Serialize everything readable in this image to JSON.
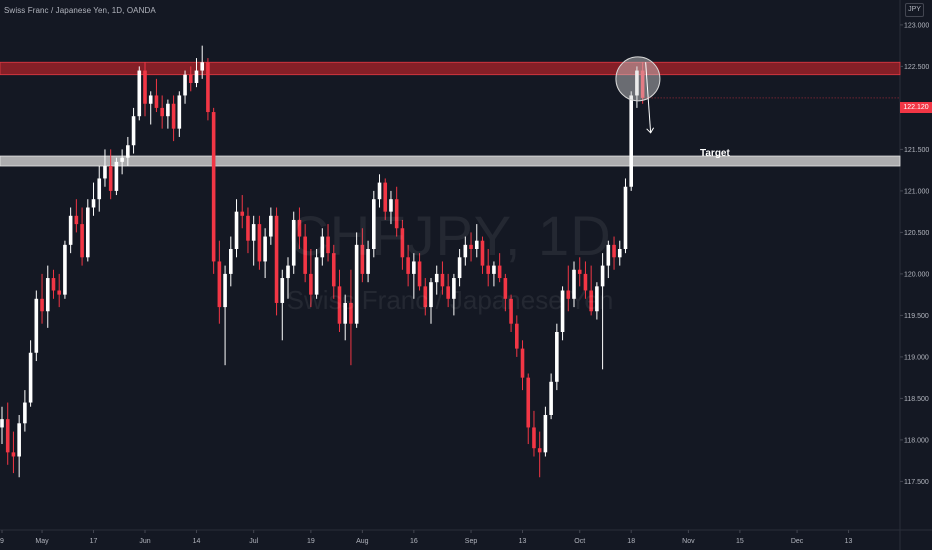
{
  "header": {
    "title": "Swiss Franc / Japanese Yen, 1D, OANDA",
    "currency": "JPY"
  },
  "watermark": {
    "symbol": "CHFJPY, 1D",
    "name": "Swiss Franc / Japanese Yen"
  },
  "annotations": {
    "target_label": "Target",
    "last_price_label": "122.120"
  },
  "colors": {
    "background": "#141823",
    "up_candle": "#ffffff",
    "down_candle": "#f23645",
    "resistance_zone": "#b2222a",
    "target_zone": "#c8c8c8",
    "axis_text": "#b2b5be"
  },
  "chart_data": {
    "type": "candlestick",
    "symbol": "CHFJPY",
    "title": "Swiss Franc / Japanese Yen, 1D, OANDA",
    "ylim": [
      117.2,
      123.3
    ],
    "y_ticks": [
      "117.500",
      "118.000",
      "118.500",
      "119.000",
      "119.500",
      "120.000",
      "120.500",
      "121.000",
      "121.500",
      "122.000",
      "122.500",
      "123.000"
    ],
    "x_ticks": [
      {
        "label": "9",
        "i": 0
      },
      {
        "label": "May",
        "i": 7
      },
      {
        "label": "17",
        "i": 16
      },
      {
        "label": "Jun",
        "i": 25
      },
      {
        "label": "14",
        "i": 34
      },
      {
        "label": "Jul",
        "i": 44
      },
      {
        "label": "19",
        "i": 54
      },
      {
        "label": "Aug",
        "i": 63
      },
      {
        "label": "16",
        "i": 72
      },
      {
        "label": "Sep",
        "i": 82
      },
      {
        "label": "13",
        "i": 91
      },
      {
        "label": "Oct",
        "i": 101
      },
      {
        "label": "18",
        "i": 110
      },
      {
        "label": "Nov",
        "i": 120
      },
      {
        "label": "15",
        "i": 129
      },
      {
        "label": "Dec",
        "i": 139
      },
      {
        "label": "13",
        "i": 148
      }
    ],
    "zones": [
      {
        "name": "resistance",
        "y_from": 122.4,
        "y_to": 122.55
      },
      {
        "name": "target",
        "y_from": 121.3,
        "y_to": 121.42
      }
    ],
    "last_price": 122.12,
    "candles": [
      [
        118.15,
        118.4,
        117.95,
        118.25
      ],
      [
        118.25,
        118.45,
        117.7,
        117.85
      ],
      [
        117.85,
        118.1,
        117.6,
        117.8
      ],
      [
        117.8,
        118.3,
        117.55,
        118.2
      ],
      [
        118.2,
        118.6,
        118.1,
        118.45
      ],
      [
        118.45,
        119.2,
        118.4,
        119.05
      ],
      [
        119.05,
        119.8,
        118.95,
        119.7
      ],
      [
        119.7,
        120.0,
        119.4,
        119.55
      ],
      [
        119.55,
        120.1,
        119.35,
        119.95
      ],
      [
        119.95,
        120.05,
        119.7,
        119.8
      ],
      [
        119.8,
        120.0,
        119.6,
        119.75
      ],
      [
        119.75,
        120.4,
        119.7,
        120.35
      ],
      [
        120.35,
        120.8,
        120.25,
        120.7
      ],
      [
        120.7,
        120.9,
        120.5,
        120.6
      ],
      [
        120.6,
        120.8,
        120.1,
        120.2
      ],
      [
        120.2,
        120.9,
        120.15,
        120.8
      ],
      [
        120.8,
        121.1,
        120.7,
        120.9
      ],
      [
        120.9,
        121.3,
        120.75,
        121.15
      ],
      [
        121.15,
        121.5,
        121.05,
        121.3
      ],
      [
        121.3,
        121.5,
        120.9,
        121.0
      ],
      [
        121.0,
        121.4,
        120.95,
        121.35
      ],
      [
        121.35,
        121.5,
        121.2,
        121.4
      ],
      [
        121.4,
        121.65,
        121.3,
        121.55
      ],
      [
        121.55,
        122.0,
        121.45,
        121.9
      ],
      [
        121.9,
        122.5,
        121.85,
        122.45
      ],
      [
        122.45,
        122.55,
        121.9,
        122.05
      ],
      [
        122.05,
        122.2,
        121.8,
        122.15
      ],
      [
        122.15,
        122.35,
        121.95,
        122.0
      ],
      [
        122.0,
        122.15,
        121.75,
        121.9
      ],
      [
        121.9,
        122.1,
        121.75,
        122.05
      ],
      [
        122.05,
        122.15,
        121.6,
        121.75
      ],
      [
        121.75,
        122.2,
        121.65,
        122.15
      ],
      [
        122.15,
        122.45,
        122.05,
        122.4
      ],
      [
        122.4,
        122.5,
        122.2,
        122.3
      ],
      [
        122.3,
        122.6,
        122.25,
        122.45
      ],
      [
        122.45,
        122.75,
        122.35,
        122.55
      ],
      [
        122.55,
        122.6,
        121.85,
        121.95
      ],
      [
        121.95,
        122.0,
        120.0,
        120.15
      ],
      [
        120.15,
        120.4,
        119.4,
        119.6
      ],
      [
        119.6,
        120.1,
        118.9,
        120.0
      ],
      [
        120.0,
        120.45,
        119.85,
        120.3
      ],
      [
        120.3,
        120.9,
        120.2,
        120.75
      ],
      [
        120.75,
        120.95,
        120.55,
        120.7
      ],
      [
        120.7,
        120.8,
        120.25,
        120.4
      ],
      [
        120.4,
        120.7,
        120.1,
        120.6
      ],
      [
        120.6,
        120.7,
        120.05,
        120.15
      ],
      [
        120.15,
        120.55,
        119.95,
        120.45
      ],
      [
        120.45,
        120.8,
        120.35,
        120.7
      ],
      [
        120.7,
        120.8,
        119.5,
        119.65
      ],
      [
        119.65,
        120.05,
        119.2,
        119.95
      ],
      [
        119.95,
        120.2,
        119.7,
        120.1
      ],
      [
        120.1,
        120.75,
        120.0,
        120.65
      ],
      [
        120.65,
        120.8,
        120.3,
        120.45
      ],
      [
        120.45,
        120.6,
        119.9,
        120.0
      ],
      [
        120.0,
        120.3,
        119.6,
        119.75
      ],
      [
        119.75,
        120.3,
        119.7,
        120.2
      ],
      [
        120.2,
        120.55,
        120.1,
        120.45
      ],
      [
        120.45,
        120.6,
        120.15,
        120.25
      ],
      [
        120.25,
        120.35,
        119.7,
        119.85
      ],
      [
        119.85,
        120.05,
        119.3,
        119.4
      ],
      [
        119.4,
        119.75,
        119.2,
        119.65
      ],
      [
        119.65,
        120.05,
        118.9,
        119.4
      ],
      [
        119.4,
        120.5,
        119.35,
        120.35
      ],
      [
        120.35,
        120.55,
        119.9,
        120.0
      ],
      [
        120.0,
        120.4,
        119.9,
        120.3
      ],
      [
        120.3,
        121.0,
        120.2,
        120.9
      ],
      [
        120.9,
        121.2,
        120.8,
        121.1
      ],
      [
        121.1,
        121.15,
        120.65,
        120.75
      ],
      [
        120.75,
        121.0,
        120.6,
        120.9
      ],
      [
        120.9,
        121.05,
        120.45,
        120.55
      ],
      [
        120.55,
        120.65,
        120.05,
        120.2
      ],
      [
        120.2,
        120.35,
        119.85,
        120.0
      ],
      [
        120.0,
        120.25,
        119.7,
        120.15
      ],
      [
        120.15,
        120.25,
        119.8,
        119.85
      ],
      [
        119.85,
        119.95,
        119.5,
        119.6
      ],
      [
        119.6,
        119.95,
        119.4,
        119.9
      ],
      [
        119.9,
        120.1,
        119.75,
        120.0
      ],
      [
        120.0,
        120.15,
        119.75,
        119.85
      ],
      [
        119.85,
        120.0,
        119.6,
        119.7
      ],
      [
        119.7,
        120.0,
        119.5,
        119.95
      ],
      [
        119.95,
        120.3,
        119.85,
        120.2
      ],
      [
        120.2,
        120.45,
        120.1,
        120.35
      ],
      [
        120.35,
        120.5,
        120.15,
        120.3
      ],
      [
        120.3,
        120.6,
        120.2,
        120.4
      ],
      [
        120.4,
        120.45,
        120.0,
        120.1
      ],
      [
        120.1,
        120.3,
        119.85,
        120.0
      ],
      [
        120.0,
        120.15,
        119.85,
        120.1
      ],
      [
        120.1,
        120.25,
        119.9,
        119.95
      ],
      [
        119.95,
        120.0,
        119.55,
        119.7
      ],
      [
        119.7,
        119.75,
        119.3,
        119.4
      ],
      [
        119.4,
        119.5,
        119.0,
        119.1
      ],
      [
        119.1,
        119.2,
        118.6,
        118.75
      ],
      [
        118.75,
        118.8,
        117.95,
        118.15
      ],
      [
        118.15,
        118.35,
        117.8,
        117.9
      ],
      [
        117.9,
        118.1,
        117.55,
        117.85
      ],
      [
        117.85,
        118.4,
        117.8,
        118.3
      ],
      [
        118.3,
        118.8,
        118.25,
        118.7
      ],
      [
        118.7,
        119.4,
        118.6,
        119.3
      ],
      [
        119.3,
        119.85,
        119.2,
        119.8
      ],
      [
        119.8,
        120.1,
        119.55,
        119.7
      ],
      [
        119.7,
        120.15,
        119.6,
        120.05
      ],
      [
        120.05,
        120.2,
        119.85,
        120.0
      ],
      [
        120.0,
        120.15,
        119.7,
        119.8
      ],
      [
        119.8,
        120.1,
        119.5,
        119.55
      ],
      [
        119.55,
        119.9,
        119.45,
        119.85
      ],
      [
        119.85,
        120.25,
        118.85,
        120.1
      ],
      [
        120.1,
        120.4,
        119.95,
        120.35
      ],
      [
        120.35,
        120.45,
        120.05,
        120.2
      ],
      [
        120.2,
        120.4,
        120.1,
        120.3
      ],
      [
        120.3,
        121.15,
        120.25,
        121.05
      ],
      [
        121.05,
        122.2,
        121.0,
        122.15
      ],
      [
        122.15,
        122.5,
        122.0,
        122.45
      ],
      [
        122.45,
        122.55,
        122.05,
        122.12
      ]
    ]
  }
}
